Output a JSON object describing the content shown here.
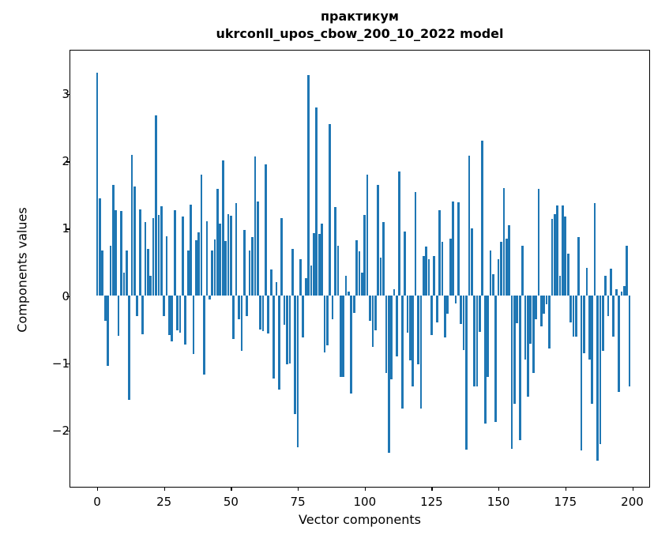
{
  "figure": {
    "title_line1": "практикум",
    "title_line2": "ukrconll_upos_cbow_200_10_2022 model",
    "xlabel": "Vector components",
    "ylabel": "Components values"
  },
  "chart_data": {
    "type": "bar",
    "title": "практикум ukrconll_upos_cbow_200_10_2022 model",
    "xlabel": "Vector components",
    "ylabel": "Components values",
    "legend": "none",
    "grid": false,
    "bar_color": "#1f77b4",
    "bar_width_units": 0.8,
    "x_ticks": [
      0,
      25,
      50,
      75,
      100,
      125,
      150,
      175,
      200
    ],
    "y_ticks": [
      3,
      2,
      1,
      0,
      -1,
      -2
    ],
    "xlim": [
      -10.33,
      206.64
    ],
    "ylim": [
      -2.85,
      3.66
    ],
    "x_range": [
      0,
      199
    ],
    "values": [
      3.32,
      1.45,
      0.67,
      -0.37,
      -1.04,
      0.75,
      1.65,
      1.28,
      -0.59,
      1.26,
      0.35,
      0.68,
      -1.55,
      2.1,
      1.63,
      -0.3,
      1.29,
      -0.57,
      1.1,
      0.7,
      0.3,
      1.16,
      2.68,
      1.2,
      1.33,
      -0.3,
      0.89,
      -0.58,
      -0.68,
      1.28,
      -0.51,
      -0.55,
      1.18,
      -0.72,
      0.67,
      1.36,
      -0.86,
      0.83,
      0.95,
      1.8,
      -1.17,
      1.11,
      -0.05,
      0.67,
      0.84,
      1.59,
      1.07,
      2.01,
      0.82,
      1.21,
      1.19,
      -0.64,
      1.38,
      -0.35,
      -0.82,
      0.98,
      -0.3,
      0.67,
      0.87,
      2.07,
      1.4,
      -0.5,
      -0.52,
      1.96,
      -0.56,
      0.39,
      -1.23,
      0.2,
      -1.39,
      1.16,
      -0.43,
      -1.02,
      -1.0,
      0.7,
      -1.76,
      -2.25,
      0.55,
      -0.62,
      0.26,
      3.28,
      0.45,
      0.93,
      2.8,
      0.92,
      1.08,
      -0.84,
      -0.74,
      2.55,
      -0.35,
      1.32,
      0.75,
      -1.21,
      -1.21,
      0.3,
      0.07,
      -1.45,
      -0.25,
      0.83,
      0.66,
      0.35,
      1.2,
      1.8,
      -0.37,
      -0.76,
      -0.51,
      1.65,
      0.57,
      1.1,
      -1.15,
      -2.33,
      -1.24,
      0.1,
      -0.9,
      1.85,
      -1.68,
      0.96,
      -0.55,
      -0.96,
      -1.35,
      1.55,
      -1.02,
      -1.68,
      0.59,
      0.73,
      0.55,
      -0.58,
      0.59,
      -0.39,
      1.28,
      0.81,
      -0.62,
      -0.27,
      0.85,
      1.4,
      -0.11,
      1.39,
      -0.42,
      -0.8,
      -2.29,
      2.09,
      1.01,
      -1.35,
      -1.35,
      -0.53,
      2.31,
      -1.9,
      -1.21,
      0.67,
      0.32,
      -1.88,
      0.55,
      0.8,
      1.6,
      0.85,
      1.05,
      -2.27,
      -1.61,
      -0.41,
      -2.14,
      0.75,
      -0.95,
      -1.5,
      -0.71,
      -1.15,
      -0.35,
      1.59,
      -0.45,
      -0.26,
      -0.12,
      -0.78,
      1.15,
      1.22,
      1.34,
      0.3,
      1.34,
      1.18,
      0.63,
      -0.39,
      -0.6,
      -0.6,
      0.87,
      -2.3,
      -0.85,
      0.42,
      -0.95,
      -1.6,
      1.38,
      -2.45,
      -2.2,
      -0.82,
      0.3,
      -0.3,
      0.4,
      -0.61,
      0.1,
      -1.43,
      0.06,
      0.15,
      0.75,
      -1.35
    ]
  }
}
